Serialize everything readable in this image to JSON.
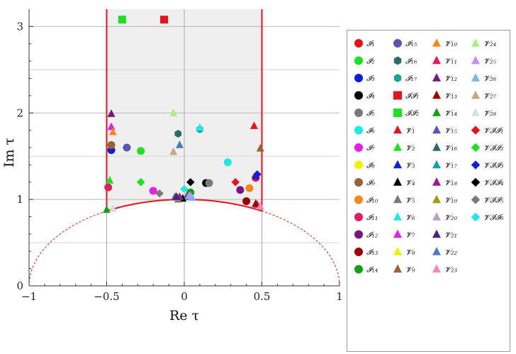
{
  "chart_data": {
    "type": "scatter",
    "title": "",
    "xlabel": "Re τ",
    "ylabel": "Im τ",
    "xlim": [
      -1,
      1
    ],
    "ylim": [
      0,
      3.2
    ],
    "x_ticks": [
      -1,
      -0.5,
      0,
      0.5,
      1
    ],
    "x_tick_labels": [
      "−1",
      "−0.5",
      "0",
      "0.5",
      "1"
    ],
    "y_ticks": [
      0,
      1,
      2,
      3
    ],
    "y_tick_labels": [
      "0",
      "1",
      "2",
      "3"
    ],
    "grid": true,
    "fundamental_domain": {
      "x_min": -0.5,
      "x_max": 0.5,
      "arc_radius": 1,
      "fill": "#efefef",
      "edge_color": "#e8121b"
    },
    "legend_position": "right",
    "series": [
      {
        "name": "I1",
        "label": "𝓘₁",
        "marker": "circle",
        "color": "#e8121b",
        "points": [
          [
            0.46,
            1.25
          ]
        ]
      },
      {
        "name": "I2",
        "label": "𝓘₂",
        "marker": "circle",
        "color": "#1fe01f",
        "points": [
          [
            -0.28,
            1.56
          ]
        ]
      },
      {
        "name": "I3",
        "label": "𝓘₃",
        "marker": "circle",
        "color": "#0c1ee0",
        "points": [
          [
            -0.47,
            1.57
          ]
        ]
      },
      {
        "name": "I4",
        "label": "𝓘₄",
        "marker": "circle",
        "color": "#000000",
        "points": [
          [
            0.14,
            1.19
          ]
        ]
      },
      {
        "name": "I5",
        "label": "𝓘₅",
        "marker": "circle",
        "color": "#7a7a7a",
        "points": [
          [
            0.16,
            1.19
          ]
        ]
      },
      {
        "name": "I6",
        "label": "𝓘₆",
        "marker": "circle",
        "color": "#1ee8e8",
        "points": [
          [
            0.28,
            1.43
          ]
        ]
      },
      {
        "name": "I7",
        "label": "𝓘₇",
        "marker": "circle",
        "color": "#e81ee8",
        "points": [
          [
            -0.2,
            1.1
          ]
        ]
      },
      {
        "name": "I8",
        "label": "𝓘₈",
        "marker": "circle",
        "color": "#f0f000",
        "points": [
          [
            -0.04,
            1.02
          ]
        ]
      },
      {
        "name": "I9",
        "label": "𝓘₉",
        "marker": "circle",
        "color": "#9a6232",
        "points": [
          [
            -0.47,
            1.63
          ]
        ]
      },
      {
        "name": "I10",
        "label": "𝓘₁₀",
        "marker": "circle",
        "color": "#f08a14",
        "points": [
          [
            0.42,
            1.13
          ]
        ]
      },
      {
        "name": "I11",
        "label": "𝓘₁₁",
        "marker": "circle",
        "color": "#e01e60",
        "points": [
          [
            -0.49,
            1.14
          ]
        ]
      },
      {
        "name": "I12",
        "label": "𝓘₁₂",
        "marker": "circle",
        "color": "#7a1482",
        "points": [
          [
            0.36,
            1.11
          ]
        ]
      },
      {
        "name": "I13",
        "label": "𝓘₁₃",
        "marker": "circle",
        "color": "#a00000",
        "points": [
          [
            0.4,
            0.98
          ]
        ]
      },
      {
        "name": "I14",
        "label": "𝓘₁₄",
        "marker": "circle",
        "color": "#14a014",
        "points": [
          [
            0.04,
            1.08
          ]
        ]
      },
      {
        "name": "I15",
        "label": "𝓘₁₅",
        "marker": "circle",
        "color": "#5a54b4",
        "points": [
          [
            -0.37,
            1.6
          ]
        ]
      },
      {
        "name": "I16",
        "label": "𝓘₁₆",
        "marker": "hexagon",
        "color": "#2e6a6a",
        "points": [
          [
            -0.04,
            1.76
          ]
        ]
      },
      {
        "name": "I17",
        "label": "𝓘₁₇",
        "marker": "hexagon",
        "color": "#19a0a0",
        "points": [
          [
            0.1,
            1.81
          ]
        ]
      },
      {
        "name": "II1",
        "label": "𝓘𝓘₁",
        "marker": "square",
        "color": "#e8121b",
        "points": [
          [
            -0.13,
            3.08
          ]
        ]
      },
      {
        "name": "II2",
        "label": "𝓘𝓘₂",
        "marker": "square",
        "color": "#1fe01f",
        "points": [
          [
            -0.4,
            3.08
          ]
        ]
      },
      {
        "name": "V1",
        "label": "𝓥₁",
        "marker": "triangle",
        "color": "#e8121b",
        "points": [
          [
            0.45,
            1.85
          ]
        ]
      },
      {
        "name": "V2",
        "label": "𝓥₂",
        "marker": "triangle",
        "color": "#1fe01f",
        "points": [
          [
            -0.48,
            1.22
          ]
        ]
      },
      {
        "name": "V3",
        "label": "𝓥₃",
        "marker": "triangle",
        "color": "#0c1ee0",
        "points": [
          [
            0.46,
            1.27
          ]
        ]
      },
      {
        "name": "V4",
        "label": "𝓥₄",
        "marker": "triangle",
        "color": "#000000",
        "points": [
          [
            -0.01,
            1.01
          ]
        ]
      },
      {
        "name": "V5",
        "label": "𝓥₅",
        "marker": "triangle",
        "color": "#7a7a7a",
        "points": [
          [
            -0.04,
            1.0
          ]
        ]
      },
      {
        "name": "V6",
        "label": "𝓥₆",
        "marker": "triangle",
        "color": "#1ee8e8",
        "points": [
          [
            0.1,
            1.83
          ]
        ]
      },
      {
        "name": "V7",
        "label": "𝓥₇",
        "marker": "triangle",
        "color": "#e81ee8",
        "points": [
          [
            -0.47,
            1.84
          ]
        ]
      },
      {
        "name": "V8",
        "label": "𝓥₈",
        "marker": "triangle",
        "color": "#f0f000",
        "points": [
          [
            -0.05,
            1.04
          ]
        ]
      },
      {
        "name": "V9",
        "label": "𝓥₉",
        "marker": "triangle",
        "color": "#9a6232",
        "points": [
          [
            0.49,
            1.59
          ]
        ]
      },
      {
        "name": "V10",
        "label": "𝓥₁₀",
        "marker": "triangle",
        "color": "#f08a14",
        "points": [
          [
            -0.46,
            1.78
          ]
        ]
      },
      {
        "name": "V11",
        "label": "𝓥₁₁",
        "marker": "triangle",
        "color": "#e01e60",
        "points": [
          [
            0.47,
            0.94
          ]
        ]
      },
      {
        "name": "V12",
        "label": "𝓥₁₂",
        "marker": "triangle",
        "color": "#7a1482",
        "points": [
          [
            -0.47,
            1.99
          ]
        ]
      },
      {
        "name": "V13",
        "label": "𝓥₁₃",
        "marker": "triangle",
        "color": "#a00000",
        "points": [
          [
            0.46,
            0.95
          ]
        ]
      },
      {
        "name": "V14",
        "label": "𝓥₁₄",
        "marker": "triangle",
        "color": "#14a014",
        "points": [
          [
            -0.5,
            0.88
          ]
        ]
      },
      {
        "name": "V15",
        "label": "𝓥₁₅",
        "marker": "triangle",
        "color": "#5a54b4",
        "points": [
          [
            -0.06,
            1.03
          ]
        ]
      },
      {
        "name": "V16",
        "label": "𝓥₁₆",
        "marker": "triangle",
        "color": "#2e6a6a",
        "points": [
          [
            0.02,
            1.05
          ]
        ]
      },
      {
        "name": "V17",
        "label": "𝓥₁₇",
        "marker": "triangle",
        "color": "#19a0a0",
        "points": [
          [
            0.03,
            1.03
          ]
        ]
      },
      {
        "name": "V18",
        "label": "𝓥₁₈",
        "marker": "triangle",
        "color": "#a0149a",
        "points": [
          [
            -0.03,
            1.03
          ]
        ]
      },
      {
        "name": "V19",
        "label": "𝓥₁₉",
        "marker": "triangle",
        "color": "#a0a000",
        "points": [
          [
            -0.05,
            1.02
          ]
        ]
      },
      {
        "name": "V20",
        "label": "𝓥₂₀",
        "marker": "triangle",
        "color": "#b8a0c8",
        "points": [
          [
            0.03,
            1.04
          ]
        ]
      },
      {
        "name": "V21",
        "label": "𝓥₂₁",
        "marker": "triangle",
        "color": "#4a2482",
        "points": [
          [
            -0.05,
            1.03
          ]
        ]
      },
      {
        "name": "V22",
        "label": "𝓥₂₂",
        "marker": "triangle",
        "color": "#4a7ac0",
        "points": [
          [
            -0.03,
            1.63
          ]
        ]
      },
      {
        "name": "V23",
        "label": "𝓥₂₃",
        "marker": "triangle",
        "color": "#f08ab4",
        "points": [
          [
            0.49,
            0.92
          ]
        ]
      },
      {
        "name": "V24",
        "label": "𝓥₂₄",
        "marker": "triangle",
        "color": "#a8f080",
        "points": [
          [
            -0.07,
            2.0
          ]
        ]
      },
      {
        "name": "V25",
        "label": "𝓥₂₅",
        "marker": "triangle",
        "color": "#c890f0",
        "points": [
          [
            0.04,
            1.04
          ]
        ]
      },
      {
        "name": "V26",
        "label": "𝓥₂₆",
        "marker": "triangle",
        "color": "#7ab4f0",
        "points": [
          [
            0.05,
            1.02
          ]
        ]
      },
      {
        "name": "V27",
        "label": "𝓥₂₇",
        "marker": "triangle",
        "color": "#c4a882",
        "points": [
          [
            -0.07,
            1.55
          ]
        ]
      },
      {
        "name": "V28",
        "label": "𝓥₂₈",
        "marker": "triangle",
        "color": "#dcdcdc",
        "points": [
          [
            -0.46,
            0.89
          ]
        ]
      },
      {
        "name": "VII1",
        "label": "𝓥𝓘𝓘₁",
        "marker": "diamond",
        "color": "#e8121b",
        "points": [
          [
            0.33,
            1.2
          ]
        ]
      },
      {
        "name": "VII2",
        "label": "𝓥𝓘𝓘₂",
        "marker": "diamond",
        "color": "#1fe01f",
        "points": [
          [
            -0.28,
            1.2
          ]
        ]
      },
      {
        "name": "VII3",
        "label": "𝓥𝓘𝓘₃",
        "marker": "diamond",
        "color": "#0c1ee0",
        "points": [
          [
            0.47,
            1.29
          ]
        ]
      },
      {
        "name": "VII4",
        "label": "𝓥𝓘𝓘₄",
        "marker": "diamond",
        "color": "#000000",
        "points": [
          [
            0.04,
            1.2
          ]
        ]
      },
      {
        "name": "VII5",
        "label": "𝓥𝓘𝓘₅",
        "marker": "diamond",
        "color": "#7a7a7a",
        "points": [
          [
            -0.16,
            1.07
          ]
        ]
      },
      {
        "name": "VII6",
        "label": "𝓥𝓘𝓘₆",
        "marker": "diamond",
        "color": "#1ee8e8",
        "points": [
          [
            0.0,
            1.12
          ]
        ]
      }
    ]
  }
}
